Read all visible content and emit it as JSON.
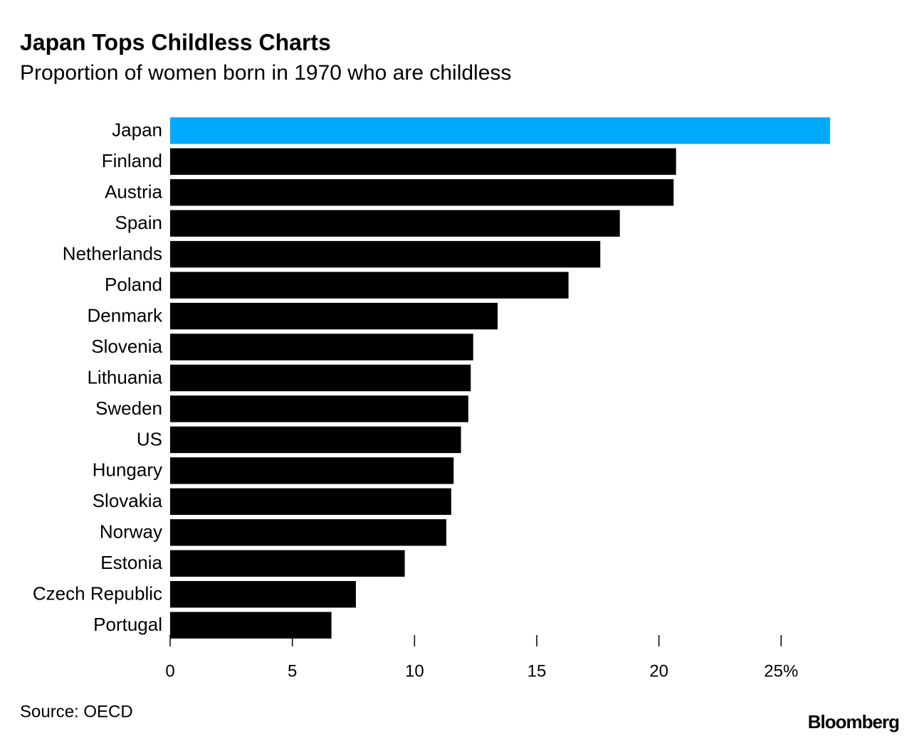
{
  "chart_data": {
    "type": "hbar",
    "title": "Japan Tops Childless Charts",
    "subtitle": "Proportion of women born in 1970 who are childless",
    "categories": [
      "Japan",
      "Finland",
      "Austria",
      "Spain",
      "Netherlands",
      "Poland",
      "Denmark",
      "Slovenia",
      "Lithuania",
      "Sweden",
      "US",
      "Hungary",
      "Slovakia",
      "Norway",
      "Estonia",
      "Czech Republic",
      "Portugal"
    ],
    "values": [
      27.0,
      20.7,
      20.6,
      18.4,
      17.6,
      16.3,
      13.4,
      12.4,
      12.3,
      12.2,
      11.9,
      11.6,
      11.5,
      11.3,
      9.6,
      7.6,
      6.6
    ],
    "colors": [
      "#00aaff",
      "#000000",
      "#000000",
      "#000000",
      "#000000",
      "#000000",
      "#000000",
      "#000000",
      "#000000",
      "#000000",
      "#000000",
      "#000000",
      "#000000",
      "#000000",
      "#000000",
      "#000000",
      "#000000"
    ],
    "xlim": [
      0,
      27
    ],
    "xticks": [
      0,
      5,
      10,
      15,
      20,
      {
        "value": 25,
        "label": "25%"
      }
    ],
    "source": "Source: OECD",
    "brand": "Bloomberg"
  }
}
